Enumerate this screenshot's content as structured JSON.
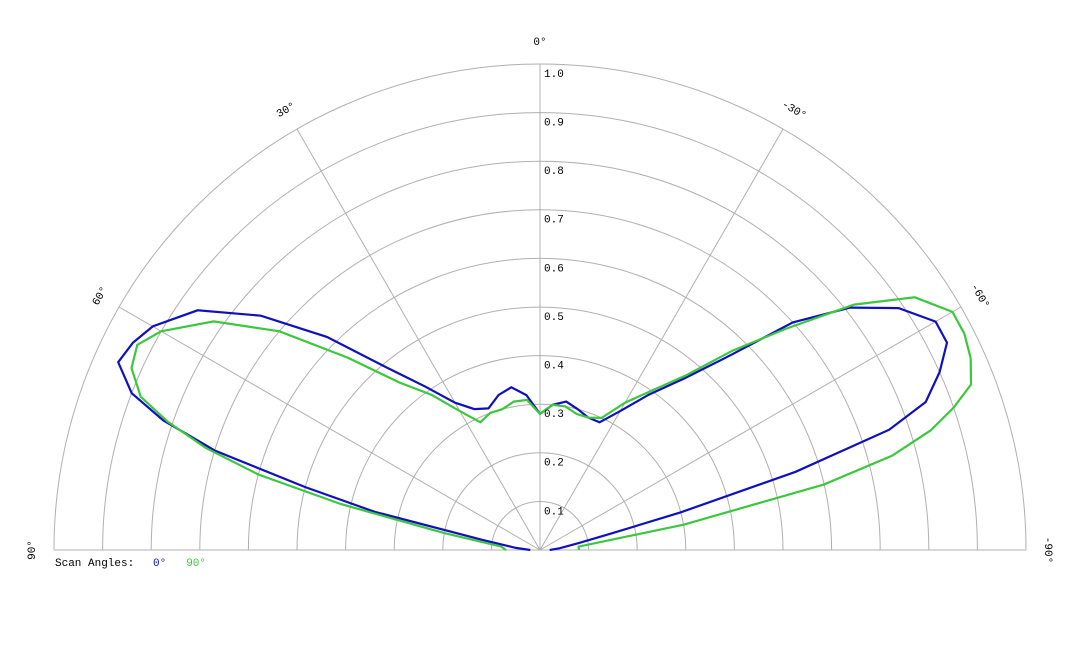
{
  "chart_data": {
    "type": "polar",
    "theta": [
      -90,
      -85,
      -80,
      -77,
      -75,
      -73,
      -71,
      -69,
      -66,
      -63,
      -60,
      -56,
      -52,
      -48,
      -44,
      -40,
      -35,
      -30,
      -25,
      -20,
      -15,
      -10,
      -5,
      0,
      5,
      10,
      15,
      20,
      25,
      30,
      35,
      40,
      45,
      50,
      55,
      60,
      63,
      66,
      69,
      71,
      73,
      75,
      77,
      80,
      85,
      90
    ],
    "series": [
      {
        "name": "0°",
        "color": "#1010c0",
        "values": [
          0.02,
          0.04,
          0.08,
          0.15,
          0.3,
          0.55,
          0.76,
          0.85,
          0.9,
          0.94,
          0.94,
          0.89,
          0.81,
          0.7,
          0.55,
          0.46,
          0.39,
          0.33,
          0.29,
          0.29,
          0.3,
          0.31,
          0.3,
          0.28,
          0.32,
          0.34,
          0.33,
          0.31,
          0.32,
          0.35,
          0.41,
          0.49,
          0.62,
          0.75,
          0.86,
          0.92,
          0.94,
          0.95,
          0.9,
          0.82,
          0.7,
          0.5,
          0.35,
          0.12,
          0.05,
          0.02
        ]
      },
      {
        "name": "90°",
        "color": "#3cc83c",
        "values": [
          0.08,
          0.08,
          0.3,
          0.6,
          0.75,
          0.84,
          0.9,
          0.95,
          0.97,
          0.98,
          0.98,
          0.93,
          0.82,
          0.68,
          0.57,
          0.47,
          0.4,
          0.35,
          0.3,
          0.29,
          0.29,
          0.3,
          0.3,
          0.28,
          0.31,
          0.31,
          0.3,
          0.3,
          0.29,
          0.33,
          0.39,
          0.45,
          0.56,
          0.7,
          0.82,
          0.9,
          0.93,
          0.92,
          0.88,
          0.81,
          0.72,
          0.6,
          0.42,
          0.2,
          0.08,
          0.07
        ]
      }
    ],
    "legend_title": "Scan Angles:",
    "rlim": [
      0,
      1
    ],
    "rticks": [
      0.1,
      0.2,
      0.3,
      0.4,
      0.5,
      0.6,
      0.7,
      0.8,
      0.9,
      {
        "value": 1,
        "label": "1.0"
      }
    ],
    "thetalim": [
      -90,
      90
    ],
    "thetaticks": [
      {
        "value": 90,
        "label": "90°"
      },
      {
        "value": 60,
        "label": "60°"
      },
      {
        "value": 30,
        "label": "30°"
      },
      {
        "value": 0,
        "label": "0°"
      },
      {
        "value": -30,
        "label": "-30°"
      },
      {
        "value": -60,
        "label": "-60°"
      },
      {
        "value": -90,
        "label": "-90°"
      }
    ]
  }
}
